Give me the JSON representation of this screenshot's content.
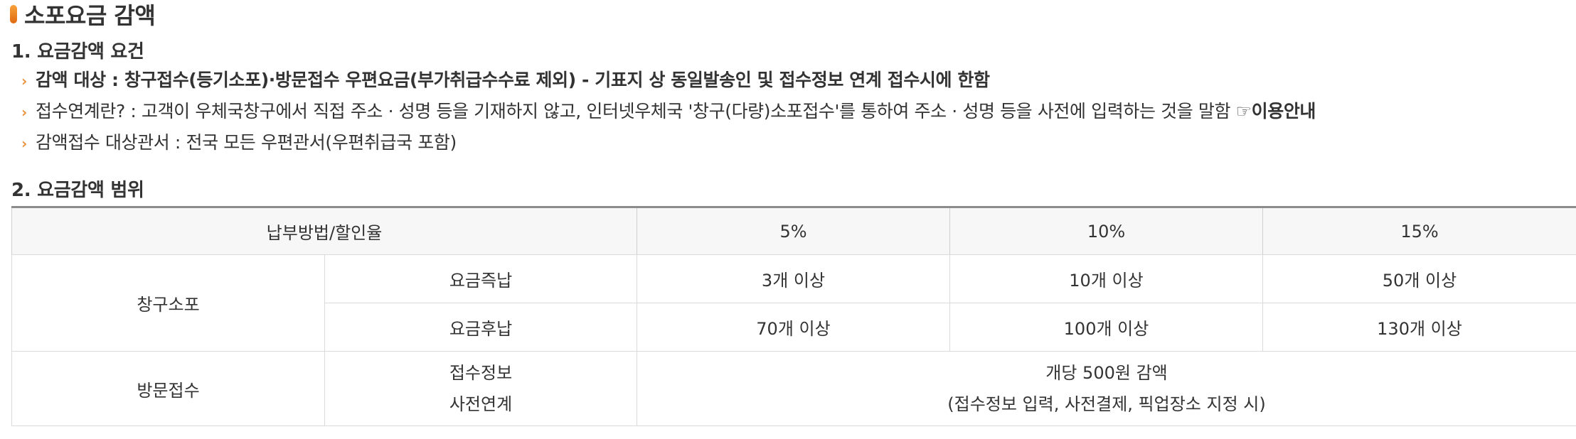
{
  "title": "소포요금 감액",
  "section1": {
    "heading": "1. 요금감액 요건",
    "bullets": [
      "감액 대상 : 창구접수(등기소포)·방문접수 우편요금(부가취급수수료 제외) - 기표지 상 동일발송인 및 접수정보 연계 접수시에 한함",
      "접수연계란? : 고객이 우체국창구에서 직접 주소 · 성명 등을 기재하지 않고, 인터넷우체국 '창구(다량)소포접수'를 통하여 주소 · 성명 등을 사전에 입력하는 것을 말함",
      "감액접수 대상관서 : 전국 모든 우편관서(우편취급국 포함)"
    ],
    "link_label": "☞이용안내"
  },
  "section2": {
    "heading": "2. 요금감액 범위"
  },
  "table": {
    "header": [
      "납부방법/할인율",
      "5%",
      "10%",
      "15%"
    ],
    "counter": {
      "label": "창구소포",
      "rows": [
        {
          "method": "요금즉납",
          "values": [
            "3개 이상",
            "10개 이상",
            "50개 이상"
          ]
        },
        {
          "method": "요금후납",
          "values": [
            "70개 이상",
            "100개 이상",
            "130개 이상"
          ]
        }
      ]
    },
    "visit": {
      "label": "방문접수",
      "method_line1": "접수정보",
      "method_line2": "사전연계",
      "value_line1": "개당 500원 감액",
      "value_line2": "(접수정보 입력, 사전결제, 픽업장소 지정 시)"
    }
  },
  "colors": {
    "accent": "#e8923a",
    "header_bg": "#f7f7f7",
    "border": "#dadada"
  }
}
